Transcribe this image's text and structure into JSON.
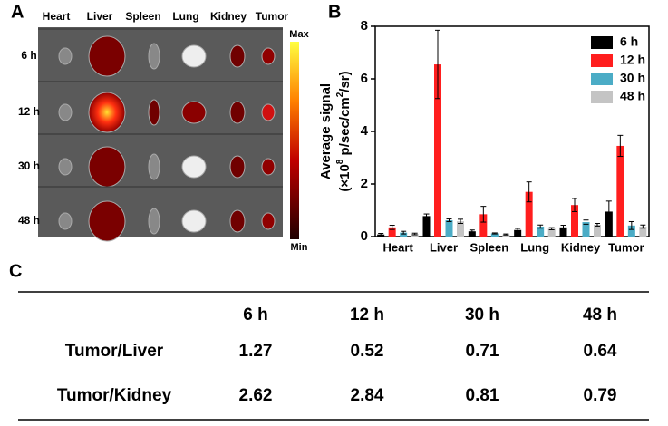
{
  "panel_labels": [
    "A",
    "B",
    "C"
  ],
  "image_panel": {
    "columns": [
      "Heart",
      "Liver",
      "Spleen",
      "Lung",
      "Kidney",
      "Tumor"
    ],
    "rows": [
      "6 h",
      "12 h",
      "30 h",
      "48 h"
    ],
    "colorbar": [
      "Max",
      "Min"
    ]
  },
  "chart_data": {
    "type": "bar",
    "ylabel": "Average signal",
    "ylabel_units": [
      "(×10",
      "8",
      " p/sec/cm",
      "2",
      "/sr)"
    ],
    "categories": [
      "Heart",
      "Liver",
      "Spleen",
      "Lung",
      "Kidney",
      "Tumor"
    ],
    "series": [
      {
        "name": "6 h",
        "color": "#000000",
        "values": [
          0.08,
          0.78,
          0.2,
          0.25,
          0.35,
          0.95
        ],
        "errors": [
          0.04,
          0.08,
          0.05,
          0.06,
          0.08,
          0.4
        ]
      },
      {
        "name": "12 h",
        "color": "#ff1e1e",
        "values": [
          0.35,
          6.55,
          0.85,
          1.7,
          1.2,
          3.45
        ],
        "errors": [
          0.08,
          1.3,
          0.3,
          0.38,
          0.25,
          0.4
        ]
      },
      {
        "name": "30 h",
        "color": "#4bacc6",
        "values": [
          0.15,
          0.62,
          0.12,
          0.38,
          0.55,
          0.42
        ],
        "errors": [
          0.05,
          0.05,
          0.02,
          0.06,
          0.08,
          0.15
        ]
      },
      {
        "name": "48 h",
        "color": "#c4c4c4",
        "values": [
          0.1,
          0.58,
          0.08,
          0.3,
          0.45,
          0.38
        ],
        "errors": [
          0.03,
          0.08,
          0.02,
          0.04,
          0.05,
          0.06
        ]
      }
    ],
    "ylim": [
      0,
      8
    ],
    "yticks": [
      0,
      2,
      4,
      6,
      8
    ],
    "legend": "upper right"
  },
  "table": {
    "columns": [
      "6 h",
      "12 h",
      "30 h",
      "48 h"
    ],
    "rows": [
      {
        "label": "Tumor/Liver",
        "values": [
          1.27,
          0.52,
          0.71,
          0.64
        ]
      },
      {
        "label": "Tumor/Kidney",
        "values": [
          2.62,
          2.84,
          0.81,
          0.79
        ]
      }
    ]
  }
}
